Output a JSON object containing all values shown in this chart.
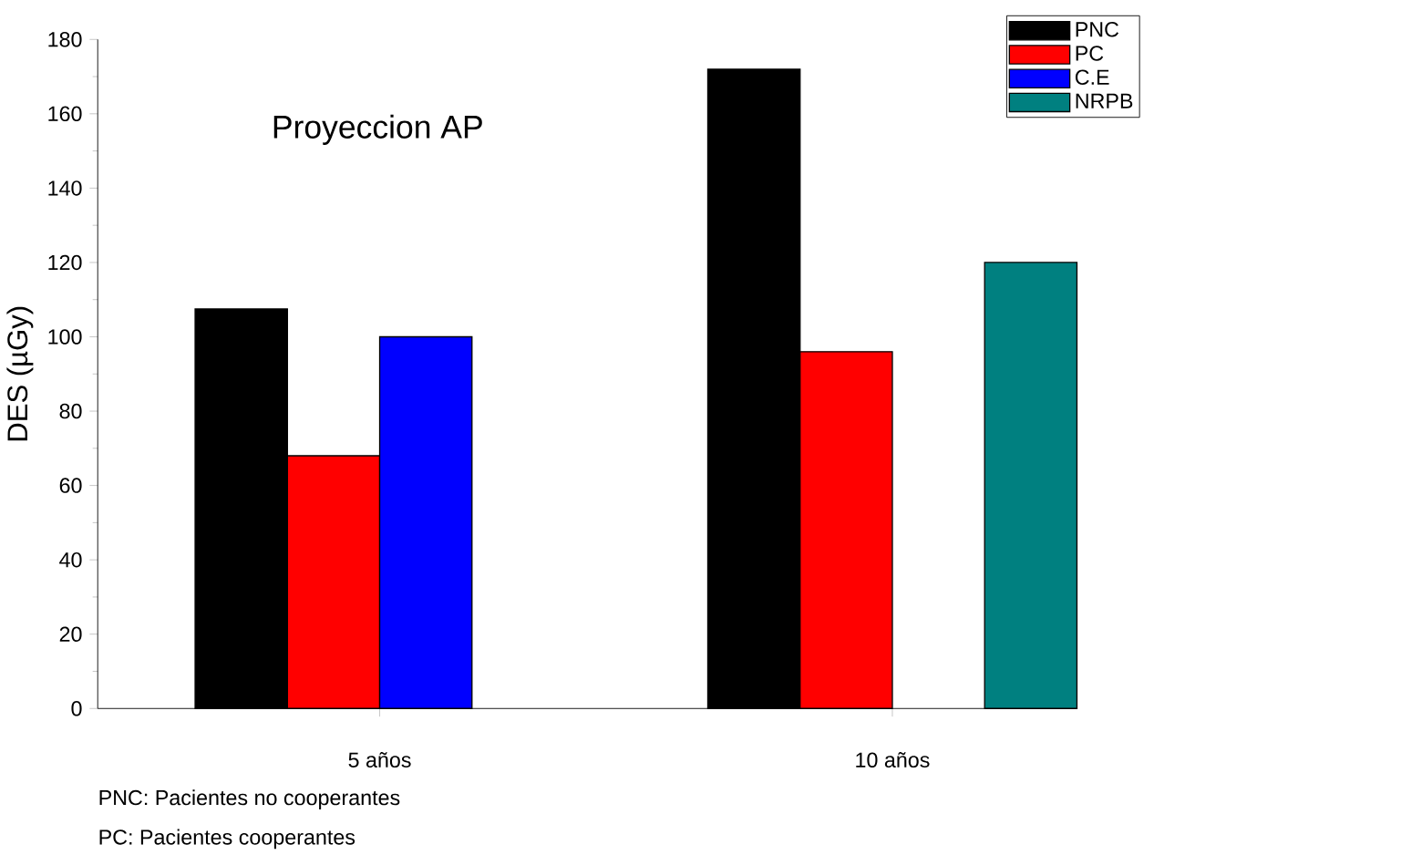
{
  "chart_data": {
    "type": "bar",
    "title": "Proyeccion AP",
    "ylabel": "DES (µGy)",
    "categories": [
      "5 años",
      "10 años"
    ],
    "series": [
      {
        "name": "PNC",
        "color": "#000000",
        "values": [
          107.5,
          172
        ]
      },
      {
        "name": "PC",
        "color": "#ff0000",
        "values": [
          68,
          96
        ]
      },
      {
        "name": "C.E",
        "color": "#0000ff",
        "values": [
          100,
          null
        ]
      },
      {
        "name": "NRPB",
        "color": "#008080",
        "values": [
          null,
          120
        ]
      }
    ],
    "ylim": [
      0,
      180
    ],
    "yticks": [
      0,
      20,
      40,
      60,
      80,
      100,
      120,
      140,
      160,
      180
    ],
    "legend": "top right",
    "grid": false,
    "annotations": [
      "PNC: Pacientes no cooperantes",
      "PC: Pacientes cooperantes"
    ]
  }
}
